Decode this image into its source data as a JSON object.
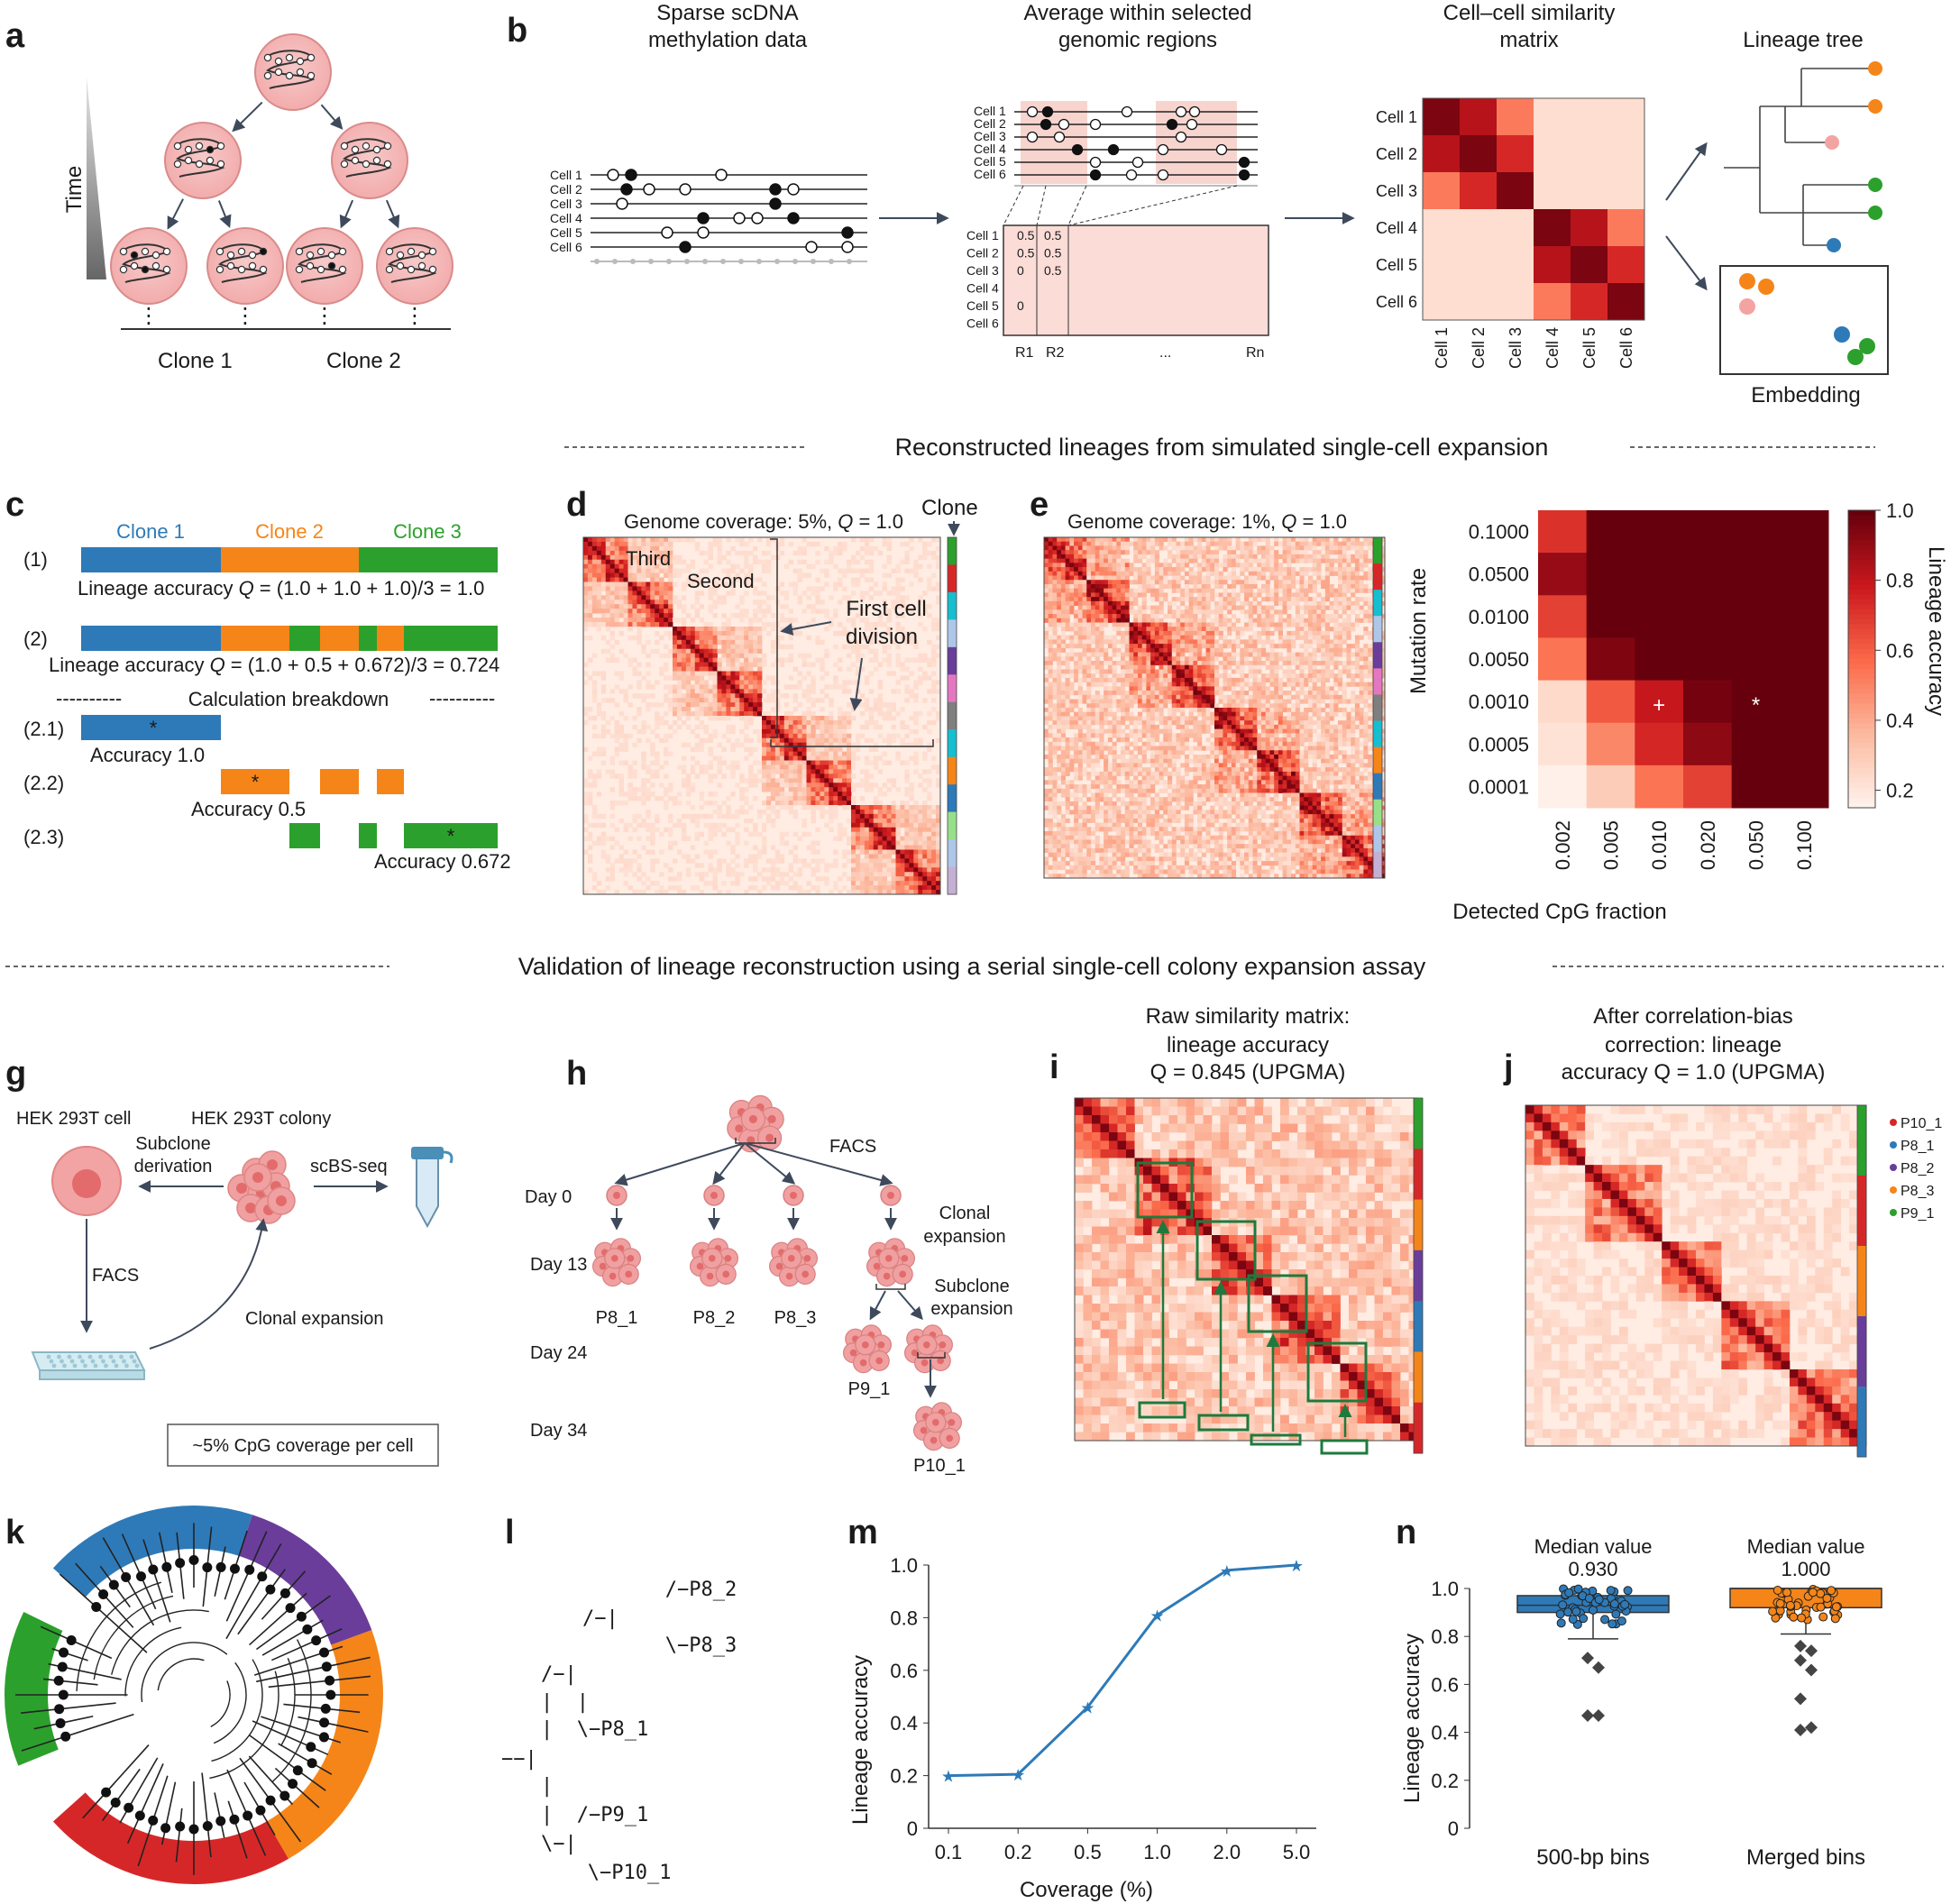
{
  "panels": {
    "a": {
      "label": "a",
      "time": "Time",
      "clone1": "Clone 1",
      "clone2": "Clone 2",
      "dots": "⋮"
    },
    "b": {
      "label": "b",
      "step1": [
        "Sparse scDNA",
        "methylation data"
      ],
      "step2": [
        "Average within selected",
        "genomic regions"
      ],
      "step3": [
        "Cell–cell similarity",
        "matrix"
      ],
      "step4": "Lineage tree",
      "step5": "Embedding",
      "cells": [
        "Cell 1",
        "Cell 2",
        "Cell 3",
        "Cell 4",
        "Cell 5",
        "Cell 6"
      ],
      "regions": [
        "R1",
        "R2",
        "...",
        "Rn"
      ],
      "region_vals": [
        [
          "0.5",
          "0.5",
          "0",
          "",
          "0",
          ""
        ],
        [
          "0.5",
          "0.5",
          "0.5",
          "",
          "",
          ""
        ]
      ]
    },
    "section1": "Reconstructed lineages from simulated single-cell expansion",
    "c": {
      "label": "c",
      "clones": [
        "Clone 1",
        "Clone 2",
        "Clone 3"
      ],
      "row1": "(1)",
      "row2": "(2)",
      "row21": "(2.1)",
      "row22": "(2.2)",
      "row23": "(2.3)",
      "eq1_pre": "Lineage accuracy ",
      "eq1_q": "Q",
      "eq1_post": " = (1.0 + 1.0 + 1.0)/3 = 1.0",
      "eq2_pre": "Lineage accuracy ",
      "eq2_q": "Q",
      "eq2_post": " = (1.0 + 0.5 + 0.672)/3 = 0.724",
      "dashes": "----------",
      "breakdown": "Calculation breakdown",
      "acc1": "Accuracy 1.0",
      "acc2": "Accuracy 0.5",
      "acc3": "Accuracy 0.672",
      "star": "*"
    },
    "d": {
      "label": "d",
      "title_pre": "Genome coverage: 5%, ",
      "title_q": "Q",
      "title_post": " = 1.0",
      "clone": "Clone",
      "third": "Third",
      "second": "Second",
      "first": [
        "First cell",
        "division"
      ]
    },
    "e": {
      "label": "e",
      "title_pre": "Genome coverage: 1%, ",
      "title_q": "Q",
      "title_post": " = 1.0"
    },
    "section2": "Validation of lineage reconstruction using a serial single-cell colony expansion assay",
    "g": {
      "label": "g",
      "cell": "HEK 293T cell",
      "colony": "HEK 293T colony",
      "subclone": [
        "Subclone",
        "derivation"
      ],
      "scbs": "scBS-seq",
      "facs": "FACS",
      "clonal": "Clonal expansion",
      "coverage": "~5% CpG coverage per cell"
    },
    "h": {
      "label": "h",
      "facs": "FACS",
      "days": [
        "Day 0",
        "Day 13",
        "Day 24",
        "Day 34"
      ],
      "clonal": [
        "Clonal",
        "expansion"
      ],
      "subclone": [
        "Subclone",
        "expansion"
      ],
      "samples": [
        "P8_1",
        "P8_2",
        "P8_3",
        "P9_1",
        "P10_1"
      ]
    },
    "i": {
      "label": "i",
      "title": [
        "Raw similarity matrix:",
        "lineage accuracy",
        "Q = 0.845 (UPGMA)"
      ]
    },
    "j": {
      "label": "j",
      "title": [
        "After correlation-bias",
        "correction: lineage",
        "accuracy Q = 1.0 (UPGMA)"
      ],
      "legend": [
        "P10_1",
        "P8_1",
        "P8_2",
        "P8_3",
        "P9_1"
      ]
    },
    "k": {
      "label": "k"
    },
    "l": {
      "label": "l",
      "tree": [
        "   /−P8_2",
        "/−|",
        "   \\−P8_3",
        "/−|",
        "|  |",
        "|  \\−P8_1",
        "−−|",
        "|",
        "|  /−P9_1",
        "\\−|",
        "   \\−P10_1"
      ]
    },
    "m": {
      "label": "m"
    },
    "n": {
      "label": "n",
      "median_label": "Median value",
      "medians": [
        "0.930",
        "1.000"
      ]
    }
  },
  "colors": {
    "clone_blue": "#2e7ab8",
    "clone_orange": "#f58518",
    "clone_green": "#2ca02c",
    "red": "#d62728",
    "purple": "#6a3d9a",
    "pink_cell": "#f4b6b6",
    "dark_red": "#7a0c0c",
    "grey": "#7f7f7f",
    "cyan": "#17becf",
    "brown": "#8c564b",
    "magenta": "#e377c2",
    "lightgreen": "#98df8a",
    "lightblue": "#aec7e8"
  },
  "chart_data": [
    {
      "id": "b-similarity",
      "type": "heatmap",
      "title": "Cell–cell similarity matrix",
      "x": [
        "Cell 1",
        "Cell 2",
        "Cell 3",
        "Cell 4",
        "Cell 5",
        "Cell 6"
      ],
      "y": [
        "Cell 1",
        "Cell 2",
        "Cell 3",
        "Cell 4",
        "Cell 5",
        "Cell 6"
      ],
      "values": [
        [
          0.95,
          0.8,
          0.45,
          0.1,
          0.1,
          0.1
        ],
        [
          0.8,
          0.95,
          0.7,
          0.1,
          0.1,
          0.1
        ],
        [
          0.45,
          0.7,
          0.95,
          0.1,
          0.1,
          0.1
        ],
        [
          0.1,
          0.1,
          0.1,
          0.95,
          0.8,
          0.45
        ],
        [
          0.1,
          0.1,
          0.1,
          0.8,
          0.95,
          0.7
        ],
        [
          0.1,
          0.1,
          0.1,
          0.45,
          0.7,
          0.95
        ]
      ]
    },
    {
      "id": "f-heatmap",
      "type": "heatmap",
      "xlabel": "Detected CpG fraction",
      "ylabel": "Mutation rate",
      "colorbar_label": "Lineage accuracy",
      "x": [
        "0.002",
        "0.005",
        "0.010",
        "0.020",
        "0.050",
        "0.100"
      ],
      "y": [
        "0.1000",
        "0.0500",
        "0.0100",
        "0.0050",
        "0.0010",
        "0.0005",
        "0.0001"
      ],
      "colorbar_ticks": [
        "1.0",
        "0.8",
        "0.6",
        "0.4",
        "0.2"
      ],
      "colorbar_range": [
        0.15,
        1.0
      ],
      "values": [
        [
          0.72,
          1,
          1,
          1,
          1,
          1
        ],
        [
          0.9,
          1,
          1,
          1,
          1,
          1
        ],
        [
          0.68,
          1,
          1,
          1,
          1,
          1
        ],
        [
          0.55,
          0.95,
          1,
          1,
          1,
          1
        ],
        [
          0.25,
          0.62,
          0.8,
          0.97,
          1,
          1
        ],
        [
          0.22,
          0.5,
          0.75,
          0.92,
          1,
          1
        ],
        [
          0.17,
          0.3,
          0.55,
          0.68,
          1,
          1
        ]
      ],
      "markers": [
        {
          "row": "0.0010",
          "col": "0.010",
          "symbol": "+"
        },
        {
          "row": "0.0010",
          "col": "0.050",
          "symbol": "*"
        }
      ]
    },
    {
      "id": "m-line",
      "type": "line",
      "xlabel": "Coverage (%)",
      "ylabel": "Lineage accuracy",
      "categories": [
        "0.1",
        "0.2",
        "0.5",
        "1.0",
        "2.0",
        "5.0"
      ],
      "values": [
        0.2,
        0.205,
        0.46,
        0.81,
        0.98,
        1.0
      ],
      "ylim": [
        0,
        1.0
      ],
      "yticks": [
        "0",
        "0.2",
        "0.4",
        "0.6",
        "0.8",
        "1.0"
      ]
    },
    {
      "id": "n-box",
      "type": "box",
      "ylabel": "Lineage accuracy",
      "categories": [
        "500-bp bins",
        "Merged bins"
      ],
      "ylim": [
        0,
        1.0
      ],
      "yticks": [
        "0",
        "0.2",
        "0.4",
        "0.6",
        "0.8",
        "1.0"
      ],
      "series": [
        {
          "median": 0.93,
          "q1": 0.9,
          "q3": 0.97,
          "whisker_low": 0.79,
          "whisker_high": 1.0,
          "outliers": [
            0.71,
            0.67,
            0.47,
            0.47
          ]
        },
        {
          "median": 1.0,
          "q1": 0.92,
          "q3": 1.0,
          "whisker_low": 0.81,
          "whisker_high": 1.0,
          "outliers": [
            0.76,
            0.74,
            0.7,
            0.66,
            0.54,
            0.42,
            0.41
          ]
        }
      ]
    }
  ]
}
